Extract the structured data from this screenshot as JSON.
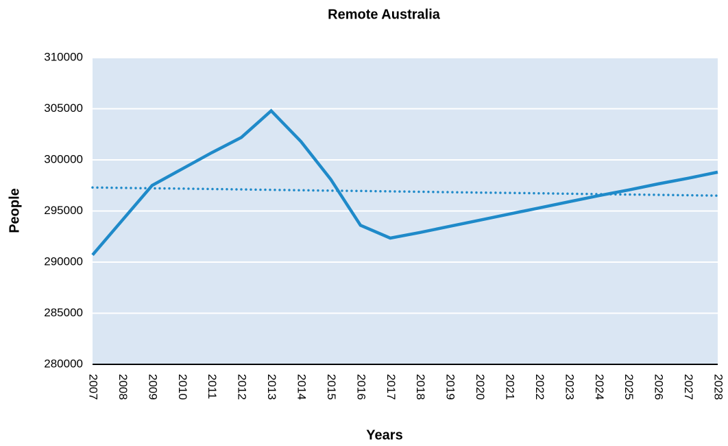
{
  "chart_data": {
    "type": "line",
    "title": "Remote Australia",
    "xlabel": "Years",
    "ylabel": "People",
    "categories": [
      "2007",
      "2008",
      "2009",
      "2010",
      "2011",
      "2012",
      "2013",
      "2014",
      "2015",
      "2016",
      "2017",
      "2018",
      "2019",
      "2020",
      "2021",
      "2022",
      "2023",
      "2024",
      "2025",
      "2026",
      "2027",
      "2028"
    ],
    "series": [
      {
        "color": "#1f8ac9",
        "style": "solid",
        "values": [
          290700,
          294100,
          297500,
          299100,
          300700,
          302200,
          304800,
          301800,
          298100,
          293600,
          292350,
          292900,
          293500,
          294100,
          294700,
          295300,
          295900,
          296500,
          297050,
          297650,
          298200,
          298800
        ]
      },
      {
        "color": "#1f8ac9",
        "style": "dotted",
        "values": [
          297300,
          297260,
          297220,
          297190,
          297150,
          297110,
          297070,
          297030,
          296990,
          296960,
          296920,
          296880,
          296840,
          296800,
          296770,
          296730,
          296690,
          296650,
          296610,
          296580,
          296540,
          296500
        ]
      }
    ],
    "ylim": [
      280000,
      310000
    ],
    "yticks": [
      280000,
      285000,
      290000,
      295000,
      300000,
      305000,
      310000
    ],
    "grid": true,
    "background": "#dae6f3"
  }
}
